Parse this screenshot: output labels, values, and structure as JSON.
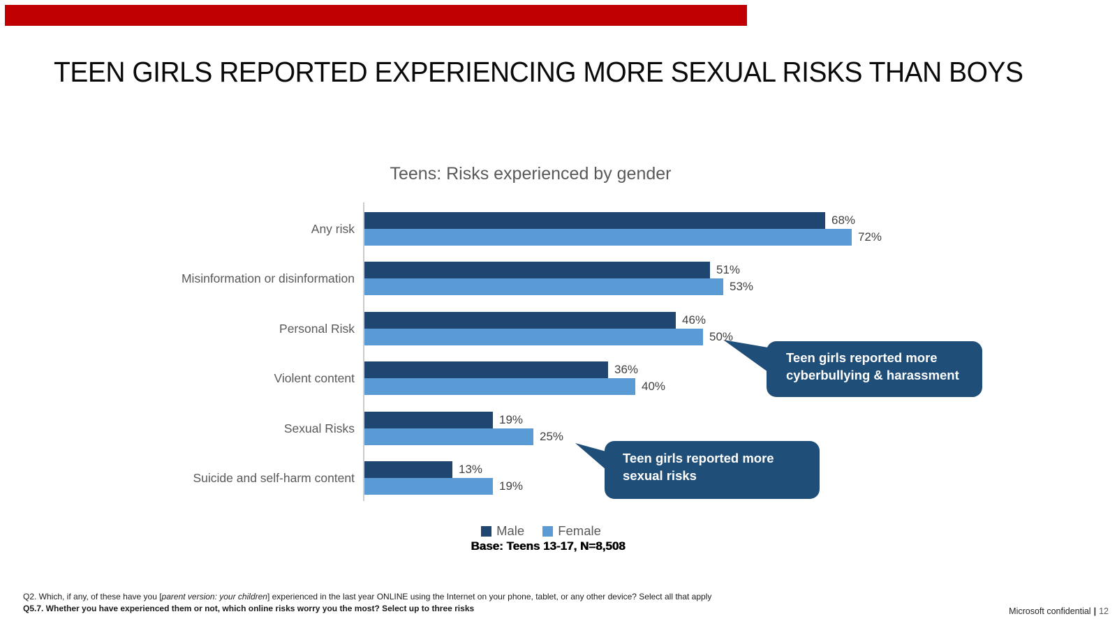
{
  "slide": {
    "accent_bar_color": "#C00000",
    "title": "TEEN GIRLS REPORTED EXPERIENCING MORE SEXUAL RISKS THAN BOYS",
    "footer_q2": {
      "prefix": "Q2. Which, if any, of these have you [",
      "italic": "parent version: your children",
      "suffix": "] experienced in the last year ONLINE using the Internet on your phone, tablet, or any other device? Select all that apply"
    },
    "footer_q57": "Q5.7. Whether you have experienced them or not, which online risks worry you the most? Select up to three risks",
    "footer_right": {
      "label": "Microsoft confidential",
      "separator": "|",
      "page": "12"
    }
  },
  "chart_data": {
    "type": "bar",
    "orientation": "horizontal",
    "title": "Teens: Risks experienced by gender",
    "categories": [
      "Any risk",
      "Misinformation or disinformation",
      "Personal Risk",
      "Violent content",
      "Sexual Risks",
      "Suicide and self-harm content"
    ],
    "series": [
      {
        "name": "Male",
        "color": "#1F4571",
        "values": [
          68,
          51,
          46,
          36,
          19,
          13
        ]
      },
      {
        "name": "Female",
        "color": "#5B9BD5",
        "values": [
          72,
          53,
          50,
          40,
          25,
          19
        ]
      }
    ],
    "value_suffix": "%",
    "xlim": [
      0,
      100
    ],
    "grid": false,
    "legend_position": "bottom",
    "base_note": "Base: Teens 13-17, N=8,508"
  },
  "callouts": [
    {
      "color": "#1F4E79",
      "lines": [
        "Teen girls reported more",
        "cyberbullying & harassment"
      ]
    },
    {
      "color": "#1F4E79",
      "lines": [
        "Teen girls reported more",
        "sexual risks"
      ]
    }
  ]
}
